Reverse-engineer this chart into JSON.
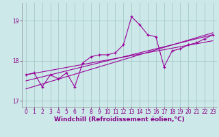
{
  "xlabel": "Windchill (Refroidissement éolien,°C)",
  "x_values": [
    0,
    1,
    2,
    3,
    4,
    5,
    6,
    7,
    8,
    9,
    10,
    11,
    12,
    13,
    14,
    15,
    16,
    17,
    18,
    19,
    20,
    21,
    22,
    23
  ],
  "y_data": [
    17.65,
    17.7,
    17.35,
    17.65,
    17.55,
    17.7,
    17.35,
    17.95,
    18.1,
    18.15,
    18.15,
    18.2,
    18.4,
    19.1,
    18.9,
    18.65,
    18.6,
    17.85,
    18.25,
    18.3,
    18.4,
    18.45,
    18.55,
    18.65
  ],
  "line1_x": [
    0,
    23
  ],
  "line1_y": [
    17.5,
    18.65
  ],
  "line2_x": [
    0,
    23
  ],
  "line2_y": [
    17.65,
    18.5
  ],
  "line3_x": [
    0,
    23
  ],
  "line3_y": [
    17.3,
    18.7
  ],
  "ylim": [
    16.85,
    19.45
  ],
  "xlim": [
    -0.5,
    23.5
  ],
  "yticks": [
    17,
    18,
    19
  ],
  "xticks": [
    0,
    1,
    2,
    3,
    4,
    5,
    6,
    7,
    8,
    9,
    10,
    11,
    12,
    13,
    14,
    15,
    16,
    17,
    18,
    19,
    20,
    21,
    22,
    23
  ],
  "bg_color": "#cce8e8",
  "grid_color": "#aacece",
  "line_color": "#990099",
  "font_color": "#880088",
  "tick_fontsize": 5.5,
  "label_fontsize": 6.5
}
